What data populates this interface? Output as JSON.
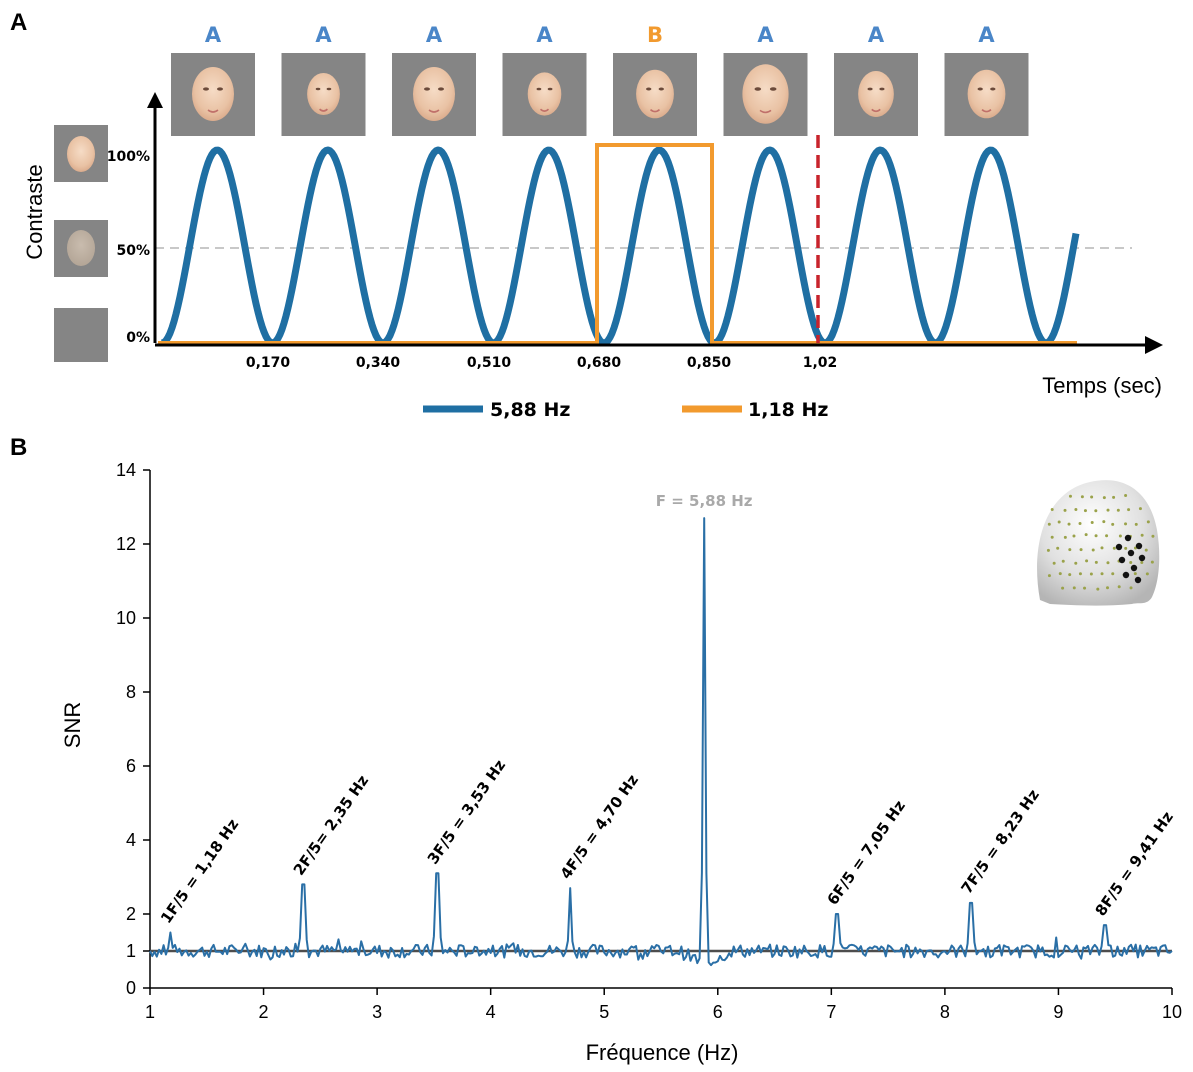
{
  "panel_a": {
    "letter": "A",
    "sequence": [
      {
        "label": "A",
        "color": "#4a86c8"
      },
      {
        "label": "A",
        "color": "#4a86c8"
      },
      {
        "label": "A",
        "color": "#4a86c8"
      },
      {
        "label": "A",
        "color": "#4a86c8"
      },
      {
        "label": "B",
        "color": "#f29a2e"
      },
      {
        "label": "A",
        "color": "#4a86c8"
      },
      {
        "label": "A",
        "color": "#4a86c8"
      },
      {
        "label": "A",
        "color": "#4a86c8"
      }
    ],
    "y_ticks": [
      "100%",
      "50%",
      "0%"
    ],
    "x_ticks": [
      "0,170",
      "0,340",
      "0,510",
      "0,680",
      "0,850",
      "1,02"
    ],
    "ylabel": "Contraste",
    "xlabel": "Temps (sec)",
    "legend": [
      {
        "label": "5,88 Hz",
        "color": "#1f6fa3"
      },
      {
        "label": "1,18 Hz",
        "color": "#f29a2e"
      }
    ],
    "image_icons": [
      "face-image",
      "contrast-swatch-icon",
      "gray-square-icon"
    ]
  },
  "panel_b": {
    "letter": "B",
    "icon": "scalp-electrode-head-icon",
    "chart_data": {
      "type": "line",
      "xlabel": "Fréquence (Hz)",
      "ylabel": "SNR",
      "xlim": [
        1,
        10
      ],
      "ylim": [
        0,
        14
      ],
      "x_ticks": [
        "1",
        "2",
        "3",
        "4",
        "5",
        "6",
        "7",
        "8",
        "9",
        "10"
      ],
      "y_ticks": [
        "0",
        "1",
        "2",
        "4",
        "6",
        "8",
        "10",
        "12",
        "14"
      ],
      "baseline": 1,
      "line_color": "#2a6fa6",
      "baseline_color": "#4d4d4d",
      "peaks": [
        {
          "x": 1.18,
          "y": 1.5,
          "label": "1F/5 = 1,18 Hz"
        },
        {
          "x": 2.35,
          "y": 2.8,
          "label": "2F/5= 2,35 Hz"
        },
        {
          "x": 3.53,
          "y": 3.1,
          "label": "3F/5 = 3,53 Hz"
        },
        {
          "x": 4.7,
          "y": 2.7,
          "label": "4F/5 = 4,70 Hz"
        },
        {
          "x": 5.88,
          "y": 12.7,
          "label": "F = 5,88 Hz"
        },
        {
          "x": 7.05,
          "y": 2.0,
          "label": "6F/5 = 7,05 Hz"
        },
        {
          "x": 8.23,
          "y": 2.3,
          "label": "7F/5 = 8,23 Hz"
        },
        {
          "x": 9.41,
          "y": 1.7,
          "label": "8F/5 = 9,41 Hz"
        }
      ]
    }
  }
}
